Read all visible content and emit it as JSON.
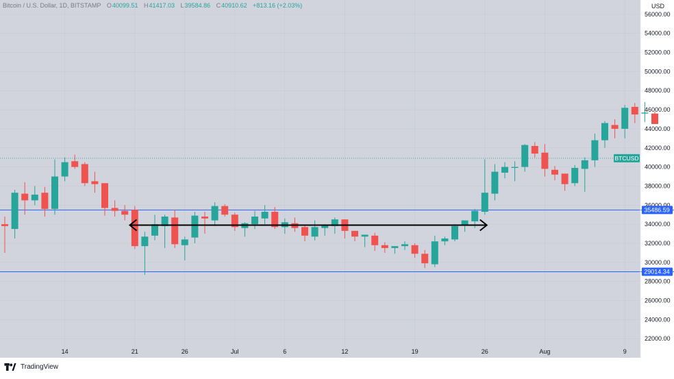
{
  "header": {
    "symbol": "Bitcoin / U.S. Dollar, 1D, BITSTAMP",
    "open_label": "O",
    "open": "40099.51",
    "high_label": "H",
    "high": "41417.03",
    "low_label": "L",
    "low": "39584.86",
    "close_label": "C",
    "close": "40910.62",
    "change": "+813.16 (+2.03%)"
  },
  "footer": {
    "brand": "TradingView",
    "logo_icon": "tradingview-logo-icon"
  },
  "chart_data": {
    "type": "candlestick",
    "y_axis_title": "USD",
    "ylim": [
      20000,
      57500
    ],
    "y_ticks": [
      22000,
      24000,
      26000,
      28000,
      30000,
      32000,
      34000,
      36000,
      38000,
      40000,
      42000,
      44000,
      46000,
      48000,
      50000,
      52000,
      54000,
      56000
    ],
    "y_tick_labels": [
      "22000.00",
      "24000.00",
      "26000.00",
      "28000.00",
      "30000.00",
      "32000.00",
      "34000.00",
      "36000.00",
      "38000.00",
      "40000.00",
      "42000.00",
      "44000.00",
      "46000.00",
      "48000.00",
      "50000.00",
      "52000.00",
      "54000.00",
      "56000.00"
    ],
    "x_tick_labels": [
      {
        "index": 6,
        "label": "14"
      },
      {
        "index": 13,
        "label": "21"
      },
      {
        "index": 18,
        "label": "26"
      },
      {
        "index": 23,
        "label": "Jul"
      },
      {
        "index": 28,
        "label": "6"
      },
      {
        "index": 34,
        "label": "12"
      },
      {
        "index": 41,
        "label": "19"
      },
      {
        "index": 48,
        "label": "26"
      },
      {
        "index": 54,
        "label": "Aug"
      },
      {
        "index": 62,
        "label": "9"
      }
    ],
    "candles": [
      {
        "o": 34000,
        "h": 34800,
        "l": 31000,
        "c": 33800
      },
      {
        "o": 33500,
        "h": 37600,
        "l": 32500,
        "c": 37300
      },
      {
        "o": 37200,
        "h": 38400,
        "l": 35000,
        "c": 36500
      },
      {
        "o": 36500,
        "h": 38000,
        "l": 36000,
        "c": 37100
      },
      {
        "o": 37300,
        "h": 37900,
        "l": 34800,
        "c": 35600
      },
      {
        "o": 35600,
        "h": 40800,
        "l": 35000,
        "c": 39000
      },
      {
        "o": 39000,
        "h": 41000,
        "l": 38500,
        "c": 40500
      },
      {
        "o": 40600,
        "h": 41300,
        "l": 39800,
        "c": 40000
      },
      {
        "o": 40300,
        "h": 40500,
        "l": 38000,
        "c": 38300
      },
      {
        "o": 38500,
        "h": 39500,
        "l": 37300,
        "c": 38200
      },
      {
        "o": 38300,
        "h": 38300,
        "l": 34900,
        "c": 35700
      },
      {
        "o": 35700,
        "h": 36500,
        "l": 34800,
        "c": 35400
      },
      {
        "o": 35400,
        "h": 36000,
        "l": 34400,
        "c": 35000
      },
      {
        "o": 35500,
        "h": 35900,
        "l": 31400,
        "c": 31700
      },
      {
        "o": 31700,
        "h": 33200,
        "l": 28700,
        "c": 32700
      },
      {
        "o": 32800,
        "h": 35000,
        "l": 32300,
        "c": 34000
      },
      {
        "o": 33800,
        "h": 35000,
        "l": 31500,
        "c": 34800
      },
      {
        "o": 34700,
        "h": 35500,
        "l": 31500,
        "c": 31900
      },
      {
        "o": 31800,
        "h": 32700,
        "l": 30200,
        "c": 32400
      },
      {
        "o": 32600,
        "h": 35300,
        "l": 32000,
        "c": 34900
      },
      {
        "o": 34800,
        "h": 35300,
        "l": 33000,
        "c": 34600
      },
      {
        "o": 34400,
        "h": 36300,
        "l": 33800,
        "c": 35900
      },
      {
        "o": 35900,
        "h": 36100,
        "l": 34800,
        "c": 35000
      },
      {
        "o": 35000,
        "h": 35200,
        "l": 33300,
        "c": 33700
      },
      {
        "o": 33600,
        "h": 34200,
        "l": 32700,
        "c": 34100
      },
      {
        "o": 34000,
        "h": 35400,
        "l": 33500,
        "c": 34800
      },
      {
        "o": 34600,
        "h": 36000,
        "l": 34000,
        "c": 35300
      },
      {
        "o": 35300,
        "h": 35800,
        "l": 33500,
        "c": 33700
      },
      {
        "o": 33700,
        "h": 34600,
        "l": 33000,
        "c": 34200
      },
      {
        "o": 34100,
        "h": 34700,
        "l": 33200,
        "c": 33600
      },
      {
        "o": 33700,
        "h": 33900,
        "l": 32200,
        "c": 32800
      },
      {
        "o": 32700,
        "h": 34400,
        "l": 32300,
        "c": 33700
      },
      {
        "o": 33600,
        "h": 34000,
        "l": 32800,
        "c": 33900
      },
      {
        "o": 33800,
        "h": 34700,
        "l": 33000,
        "c": 34500
      },
      {
        "o": 34500,
        "h": 34500,
        "l": 32500,
        "c": 33300
      },
      {
        "o": 33300,
        "h": 33300,
        "l": 32200,
        "c": 32700
      },
      {
        "o": 32700,
        "h": 32900,
        "l": 31600,
        "c": 32900
      },
      {
        "o": 32800,
        "h": 33100,
        "l": 31200,
        "c": 31800
      },
      {
        "o": 31800,
        "h": 32100,
        "l": 31000,
        "c": 31500
      },
      {
        "o": 31500,
        "h": 31700,
        "l": 30900,
        "c": 31700
      },
      {
        "o": 31700,
        "h": 32200,
        "l": 31300,
        "c": 31900
      },
      {
        "o": 31800,
        "h": 32000,
        "l": 30500,
        "c": 30900
      },
      {
        "o": 30900,
        "h": 31300,
        "l": 29400,
        "c": 29900
      },
      {
        "o": 29800,
        "h": 32800,
        "l": 29500,
        "c": 32200
      },
      {
        "o": 32200,
        "h": 32700,
        "l": 31800,
        "c": 32500
      },
      {
        "o": 32400,
        "h": 34000,
        "l": 32200,
        "c": 33800
      },
      {
        "o": 33900,
        "h": 34300,
        "l": 33200,
        "c": 34400
      },
      {
        "o": 34300,
        "h": 35600,
        "l": 33600,
        "c": 35400
      },
      {
        "o": 35300,
        "h": 40800,
        "l": 35000,
        "c": 37300
      },
      {
        "o": 37200,
        "h": 40300,
        "l": 36500,
        "c": 39500
      },
      {
        "o": 39400,
        "h": 40500,
        "l": 38800,
        "c": 40000
      },
      {
        "o": 39900,
        "h": 40600,
        "l": 38500,
        "c": 40000
      },
      {
        "o": 40000,
        "h": 42400,
        "l": 39500,
        "c": 42300
      },
      {
        "o": 42200,
        "h": 42600,
        "l": 41000,
        "c": 41400
      },
      {
        "o": 41500,
        "h": 42400,
        "l": 39000,
        "c": 39800
      },
      {
        "o": 39700,
        "h": 40100,
        "l": 38600,
        "c": 39200
      },
      {
        "o": 39300,
        "h": 39300,
        "l": 37500,
        "c": 38200
      },
      {
        "o": 38300,
        "h": 40200,
        "l": 38000,
        "c": 39900
      },
      {
        "o": 39800,
        "h": 41000,
        "l": 37400,
        "c": 40700
      },
      {
        "o": 40700,
        "h": 43500,
        "l": 40000,
        "c": 42800
      },
      {
        "o": 42800,
        "h": 44800,
        "l": 42000,
        "c": 44600
      },
      {
        "o": 44400,
        "h": 45000,
        "l": 43000,
        "c": 44000
      },
      {
        "o": 44000,
        "h": 46500,
        "l": 43000,
        "c": 46200
      },
      {
        "o": 46300,
        "h": 46700,
        "l": 44600,
        "c": 45500
      },
      {
        "o": 45600,
        "h": 46800,
        "l": 44700,
        "c": 45700
      },
      {
        "o": 45600,
        "h": 45800,
        "l": 44600,
        "c": 44500
      }
    ],
    "horizontal_lines": [
      {
        "value": 35486.59,
        "label": "35486.59",
        "color": "#2962ff"
      },
      {
        "value": 29014.34,
        "label": "29014.34",
        "color": "#2962ff"
      }
    ],
    "price_line": {
      "value": 40910.62,
      "label": "BTCUSD",
      "color": "#26a69a"
    },
    "arrow": {
      "from_index": 12.5,
      "to_index": 48.2,
      "value": 33900,
      "color": "#000000"
    },
    "colors": {
      "up": "#26a69a",
      "down": "#ef5350",
      "background": "#d1d4dc",
      "grid": "#c7cad3"
    }
  }
}
